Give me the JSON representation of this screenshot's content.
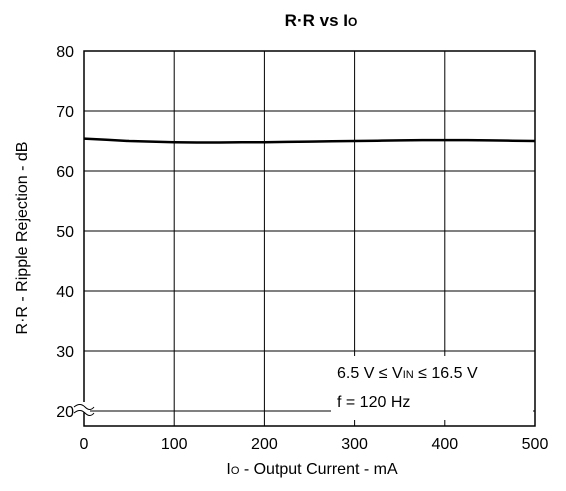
{
  "chart_data": {
    "type": "line",
    "title": "R·R vs IO",
    "title_parts": {
      "main": "R·R vs I",
      "sub": "O"
    },
    "xlabel": "IO - Output Current - mA",
    "xlabel_parts": {
      "pre": "I",
      "sub": "O",
      "post": " - Output Current - mA"
    },
    "ylabel": "R·R - Ripple Rejection - dB",
    "xlim": [
      0,
      500
    ],
    "ylim": [
      20,
      80
    ],
    "y_axis_break": true,
    "grid": true,
    "x_ticks": [
      "0",
      "100",
      "200",
      "300",
      "400",
      "500"
    ],
    "y_ticks": [
      "20",
      "30",
      "40",
      "50",
      "60",
      "70",
      "80"
    ],
    "x": [
      0,
      25,
      50,
      75,
      100,
      125,
      150,
      175,
      200,
      225,
      250,
      275,
      300,
      325,
      350,
      375,
      400,
      425,
      450,
      475,
      500
    ],
    "series": [
      {
        "values": [
          65.4,
          65.2,
          65.0,
          64.9,
          64.8,
          64.75,
          64.75,
          64.8,
          64.8,
          64.85,
          64.9,
          64.95,
          65.0,
          65.05,
          65.1,
          65.15,
          65.15,
          65.15,
          65.1,
          65.05,
          65.0
        ]
      }
    ],
    "annotations": {
      "line1": {
        "pre": "6.5 V ≤ V",
        "sub": "IN",
        "post": " ≤ 16.5 V"
      },
      "line2": "f = 120 Hz"
    }
  },
  "colors": {
    "line": "#000000",
    "grid": "#000000",
    "background": "#ffffff"
  }
}
